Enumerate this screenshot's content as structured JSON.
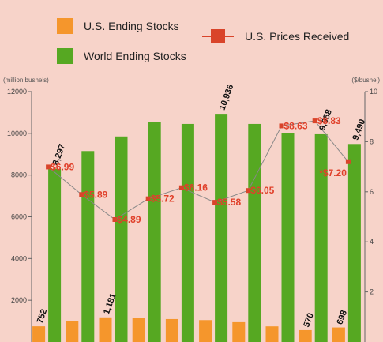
{
  "legend": {
    "us_stocks": "U.S. Ending Stocks",
    "world_stocks": "World Ending Stocks",
    "us_prices": "U.S. Prices Received"
  },
  "colors": {
    "background": "#f7d3c9",
    "us_stocks": "#f5962c",
    "world_stocks": "#56a822",
    "us_prices": "#d9442a"
  },
  "chart_data": {
    "type": "bar",
    "left_axis_title": "(million bushels)",
    "right_axis_title": "($/bushel)",
    "left_ticks": [
      "12000",
      "10000",
      "8000",
      "6000",
      "4000",
      "2000"
    ],
    "right_ticks": [
      "10",
      "8",
      "6",
      "4",
      "2"
    ],
    "ylim_left": [
      0,
      12000
    ],
    "ylim_right": [
      0,
      10
    ],
    "series": [
      {
        "name": "World Ending Stocks",
        "values": [
          8297,
          9150,
          9850,
          10550,
          10450,
          10936,
          10450,
          10000,
          9958,
          9490
        ],
        "labels": [
          "8,297",
          "",
          "",
          "",
          "",
          "10,936",
          "",
          "",
          "9,958",
          "9,490"
        ]
      },
      {
        "name": "U.S. Ending Stocks",
        "values": [
          752,
          1000,
          1181,
          1150,
          1100,
          1050,
          950,
          750,
          570,
          698
        ],
        "labels": [
          "752",
          "",
          "1,181",
          "",
          "",
          "",
          "",
          "",
          "570",
          "698"
        ]
      },
      {
        "name": "U.S. Prices Received",
        "values": [
          6.99,
          5.89,
          4.89,
          5.72,
          6.16,
          5.58,
          6.05,
          8.63,
          8.83,
          7.2
        ],
        "labels": [
          "$6.99",
          "$5.89",
          "$4.89",
          "$5.72",
          "$6.16",
          "$5.58",
          "$6.05",
          "$8.63",
          "$8.83",
          "*$7.20"
        ]
      }
    ]
  }
}
